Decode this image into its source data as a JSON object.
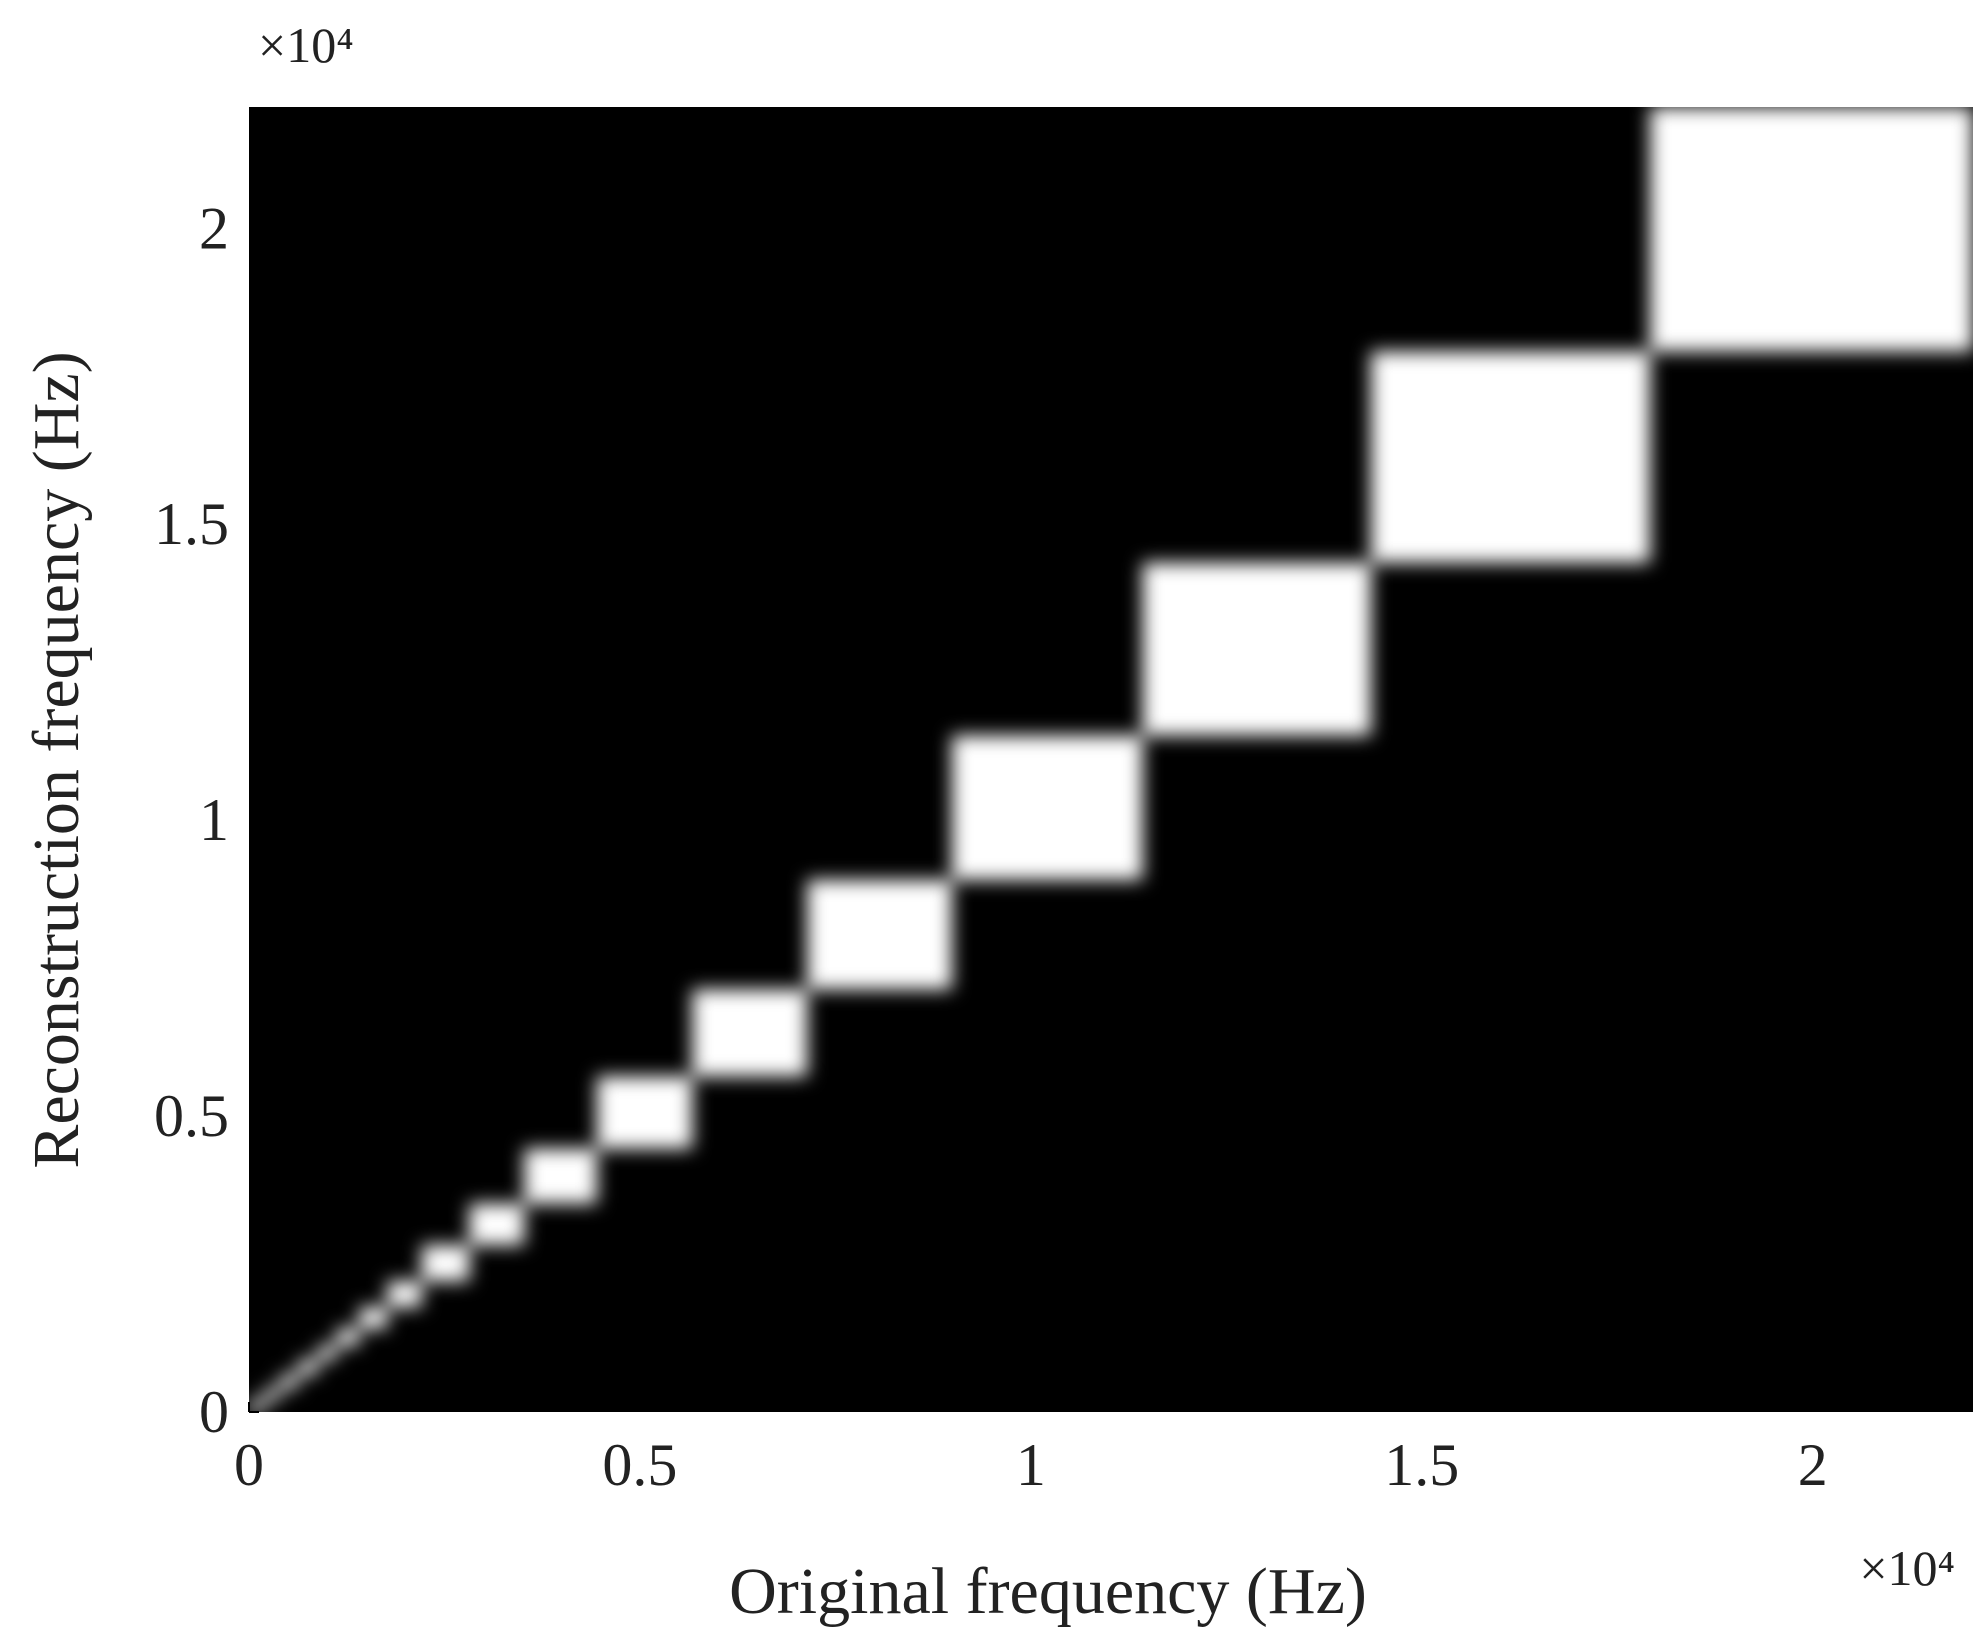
{
  "chart_data": {
    "type": "band-blocks",
    "xlabel": "Original frequency (Hz)",
    "ylabel": "Reconstruction frequency (Hz)",
    "x_multiplier": "×10⁴",
    "y_multiplier": "×10⁴",
    "edges": [
      0,
      200,
      400,
      630,
      880,
      1120,
      1410,
      1770,
      2210,
      2820,
      3520,
      4450,
      5670,
      7140,
      8990,
      11430,
      14350,
      17920,
      22050
    ],
    "color": "#ffffff",
    "background": "#000000",
    "xlim": [
      0,
      22050
    ],
    "ylim": [
      0,
      22050
    ],
    "xticks": [
      0,
      {
        "value": 5000,
        "label": "0.5"
      },
      {
        "value": 10000,
        "label": "1"
      },
      {
        "value": 15000,
        "label": "1.5"
      },
      {
        "value": 20000,
        "label": "2"
      }
    ],
    "yticks": [
      0,
      {
        "value": 5000,
        "label": "0.5"
      },
      {
        "value": 10000,
        "label": "1"
      },
      {
        "value": 15000,
        "label": "1.5"
      },
      {
        "value": 20000,
        "label": "2"
      }
    ]
  }
}
